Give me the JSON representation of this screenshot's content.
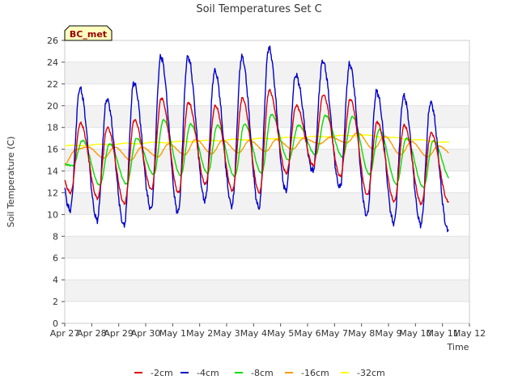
{
  "chart_data": {
    "type": "line",
    "title": "Soil Temperatures Set C",
    "xlabel": "Time",
    "ylabel": "Soil Temperature (C)",
    "badge": "BC_met",
    "ylim": [
      0,
      26
    ],
    "yticks": [
      0,
      2,
      4,
      6,
      8,
      10,
      12,
      14,
      16,
      18,
      20,
      22,
      24,
      26
    ],
    "xlim": [
      0,
      15
    ],
    "xticks": [
      {
        "x": 0,
        "label": "Apr 27"
      },
      {
        "x": 1,
        "label": "Apr 28"
      },
      {
        "x": 2,
        "label": "Apr 29"
      },
      {
        "x": 3,
        "label": "Apr 30"
      },
      {
        "x": 4,
        "label": "May 1"
      },
      {
        "x": 5,
        "label": "May 2"
      },
      {
        "x": 6,
        "label": "May 3"
      },
      {
        "x": 7,
        "label": "May 4"
      },
      {
        "x": 8,
        "label": "May 5"
      },
      {
        "x": 9,
        "label": "May 6"
      },
      {
        "x": 10,
        "label": "May 7"
      },
      {
        "x": 11,
        "label": "May 8"
      },
      {
        "x": 12,
        "label": "May 9"
      },
      {
        "x": 13,
        "label": "May 10"
      },
      {
        "x": 14,
        "label": "May 11"
      },
      {
        "x": 15,
        "label": "May 12"
      }
    ],
    "grid": "horizontal bands",
    "legend_position": "bottom",
    "series": [
      {
        "name": "-2cm",
        "color": "#dd0000",
        "min": [
          12.0,
          11.5,
          11.0,
          12.3,
          12.0,
          12.8,
          12.2,
          12.0,
          13.8,
          14.5,
          13.5,
          11.8,
          11.2,
          11.0,
          11.2
        ],
        "max": [
          18.4,
          18.0,
          18.7,
          20.7,
          20.3,
          20.0,
          20.7,
          21.4,
          20.0,
          21.0,
          20.6,
          18.5,
          18.2,
          17.5
        ]
      },
      {
        "name": "-4cm",
        "color": "#0000cc",
        "min": [
          10.4,
          9.5,
          9.0,
          10.5,
          10.2,
          11.3,
          10.8,
          10.6,
          12.2,
          14.0,
          12.5,
          9.9,
          9.2,
          9.1,
          8.6
        ],
        "max": [
          21.6,
          20.6,
          22.1,
          24.5,
          24.5,
          23.2,
          24.5,
          25.3,
          22.8,
          24.1,
          23.8,
          21.3,
          20.9,
          20.3
        ]
      },
      {
        "name": "-8cm",
        "color": "#00dd00",
        "min": [
          14.5,
          12.7,
          12.8,
          13.7,
          13.6,
          13.8,
          13.5,
          13.8,
          15.0,
          15.5,
          15.3,
          13.7,
          12.8,
          12.5,
          13.3
        ],
        "max": [
          16.8,
          16.5,
          17.0,
          18.7,
          18.3,
          18.2,
          18.3,
          19.2,
          18.2,
          19.1,
          19.0,
          17.8,
          17.0,
          16.8
        ]
      },
      {
        "name": "-16cm",
        "color": "#ff9900",
        "min": [
          16.0,
          15.2,
          15.0,
          15.3,
          15.5,
          15.6,
          15.7,
          15.8,
          16.0,
          16.5,
          16.6,
          16.0,
          15.5,
          15.3,
          15.4
        ],
        "max": [
          16.2,
          16.2,
          16.2,
          16.5,
          16.9,
          16.8,
          16.8,
          16.9,
          17.0,
          17.1,
          17.5,
          17.2,
          16.7,
          16.3
        ]
      },
      {
        "name": "-32cm",
        "color": "#ffff00",
        "start": 16.3,
        "end": 16.6,
        "peak": 17.3,
        "peak_x": 11.0
      }
    ]
  }
}
